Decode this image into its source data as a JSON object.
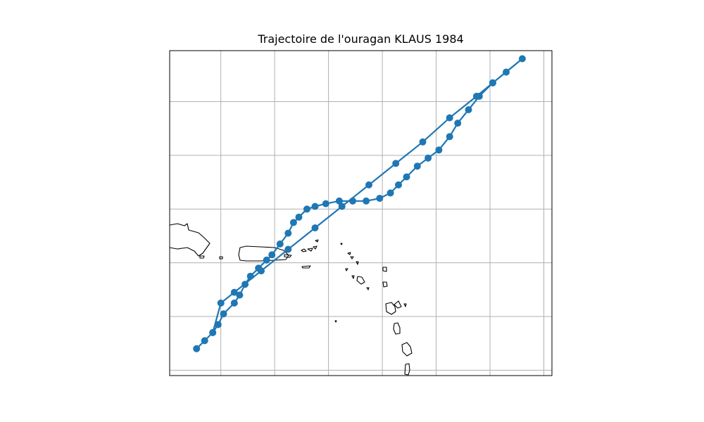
{
  "title": "Trajectoire de l'ouragan KLAUS 1984",
  "style": {
    "track_color": "#1f77b4",
    "coast_color": "#000000",
    "grid_color": "#b0b0b0",
    "frame_color": "#000000"
  },
  "map": {
    "projection": "PlateCarree",
    "gridlines": true,
    "tick_labels": false,
    "extent": {
      "lon": [
        -69.4,
        -55.2
      ],
      "lat": [
        11.3,
        23.4
      ]
    },
    "grid_lons": [
      -67.5,
      -65.5,
      -63.5,
      -61.5,
      -59.5,
      -57.5,
      -55.5
    ],
    "grid_lats": [
      11.5,
      13.5,
      15.5,
      17.5,
      19.5,
      21.5
    ]
  },
  "track": {
    "type": "line+markers",
    "points": [
      [
        -68.4,
        12.3
      ],
      [
        -68.1,
        12.6
      ],
      [
        -67.8,
        12.9
      ],
      [
        -67.6,
        13.2
      ],
      [
        -67.4,
        13.6
      ],
      [
        -67.0,
        14.0
      ],
      [
        -66.8,
        14.3
      ],
      [
        -66.6,
        14.7
      ],
      [
        -66.4,
        15.0
      ],
      [
        -66.1,
        15.3
      ],
      [
        -65.8,
        15.6
      ],
      [
        -65.6,
        15.8
      ],
      [
        -65.3,
        16.2
      ],
      [
        -65.0,
        16.6
      ],
      [
        -64.8,
        17.0
      ],
      [
        -64.6,
        17.2
      ],
      [
        -64.3,
        17.5
      ],
      [
        -64.0,
        17.6
      ],
      [
        -63.6,
        17.7
      ],
      [
        -63.1,
        17.8
      ],
      [
        -62.6,
        17.8
      ],
      [
        -62.1,
        17.8
      ],
      [
        -61.6,
        17.9
      ],
      [
        -61.2,
        18.1
      ],
      [
        -60.9,
        18.4
      ],
      [
        -60.6,
        18.7
      ],
      [
        -60.2,
        19.1
      ],
      [
        -59.8,
        19.4
      ],
      [
        -59.4,
        19.7
      ],
      [
        -59.0,
        20.2
      ],
      [
        -58.7,
        20.7
      ],
      [
        -58.3,
        21.2
      ],
      [
        -57.9,
        21.7
      ],
      [
        -57.4,
        22.2
      ],
      [
        -56.9,
        22.6
      ],
      [
        -56.3,
        23.1
      ],
      [
        -57.4,
        22.2
      ],
      [
        -58.0,
        21.7
      ],
      [
        -59.0,
        20.9
      ],
      [
        -60.0,
        20.0
      ],
      [
        -61.0,
        19.2
      ],
      [
        -62.0,
        18.4
      ],
      [
        -63.0,
        17.6
      ],
      [
        -64.0,
        16.8
      ],
      [
        -65.0,
        16.0
      ],
      [
        -66.0,
        15.2
      ],
      [
        -67.0,
        14.4
      ],
      [
        -67.5,
        14.0
      ],
      [
        -67.8,
        12.9
      ]
    ]
  }
}
